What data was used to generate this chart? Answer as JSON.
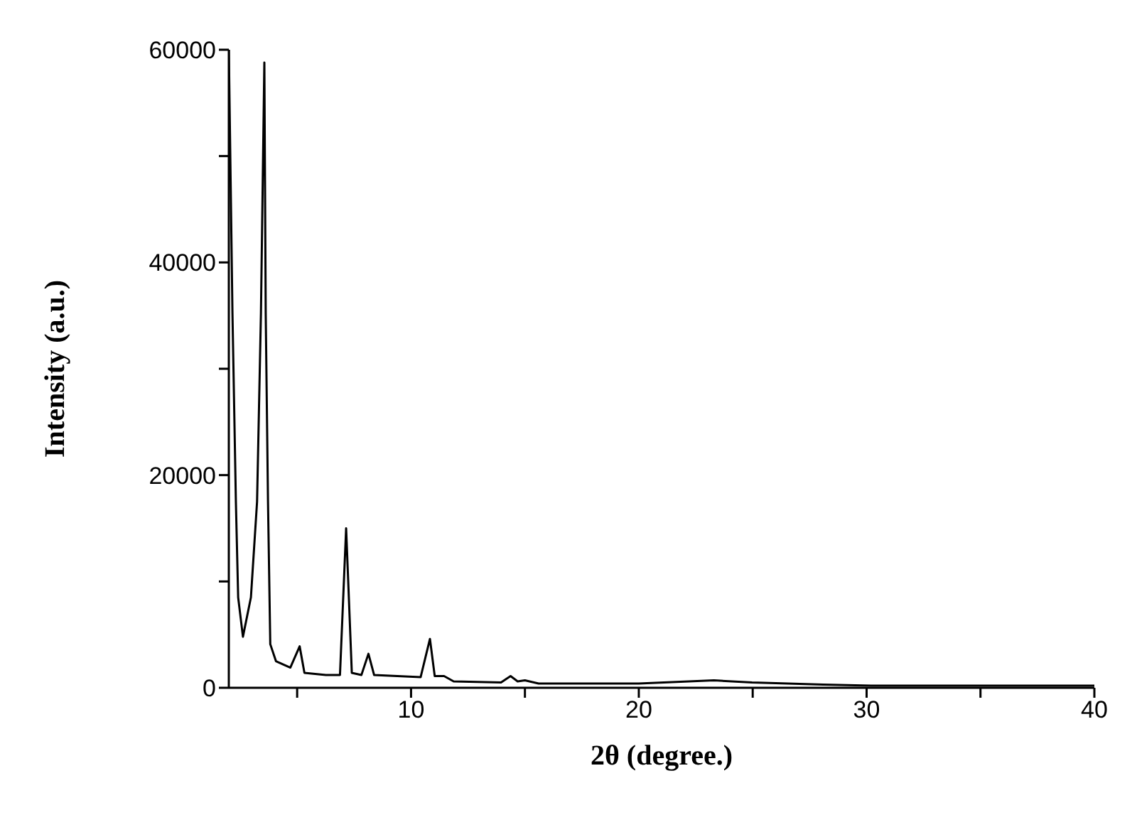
{
  "chart_data": {
    "type": "line",
    "xlabel": "2θ (degree.)",
    "ylabel": "Intensity (a.u.)",
    "x": [
      2.0,
      2.16,
      2.31,
      2.41,
      2.62,
      2.97,
      3.24,
      3.41,
      3.56,
      3.62,
      3.72,
      3.82,
      4.07,
      4.7,
      5.11,
      5.32,
      6.26,
      6.88,
      7.15,
      7.4,
      7.82,
      8.13,
      8.38,
      10.42,
      10.83,
      11.04,
      11.45,
      11.87,
      13.95,
      14.37,
      14.68,
      15.0,
      15.6,
      16.86,
      20.0,
      23.3,
      24.97,
      28.1,
      30.2,
      34.3,
      40.0
    ],
    "series": [
      {
        "color": "#000000",
        "values": [
          60000,
          35200,
          17500,
          8500,
          4800,
          8500,
          17500,
          35200,
          58800,
          35200,
          17500,
          4100,
          2500,
          1900,
          3900,
          1400,
          1200,
          1200,
          15000,
          1400,
          1200,
          3200,
          1200,
          1000,
          4600,
          1100,
          1100,
          600,
          500,
          1100,
          600,
          700,
          400,
          400,
          400,
          700,
          500,
          300,
          200,
          200,
          200
        ]
      }
    ],
    "xlim": [
      2,
      40
    ],
    "xticks": [
      {
        "value": 5,
        "label": null
      },
      10,
      {
        "value": 15,
        "label": null
      },
      20,
      {
        "value": 25,
        "label": null
      },
      30,
      {
        "value": 35,
        "label": null
      },
      40
    ],
    "ylim": [
      0,
      60000
    ],
    "yticks": [
      0,
      {
        "value": 10000,
        "label": null
      },
      20000,
      {
        "value": 30000,
        "label": null
      },
      40000,
      {
        "value": 50000,
        "label": null
      },
      60000
    ],
    "grid": false,
    "legend": false,
    "marker": "none",
    "line_style": "solid"
  }
}
